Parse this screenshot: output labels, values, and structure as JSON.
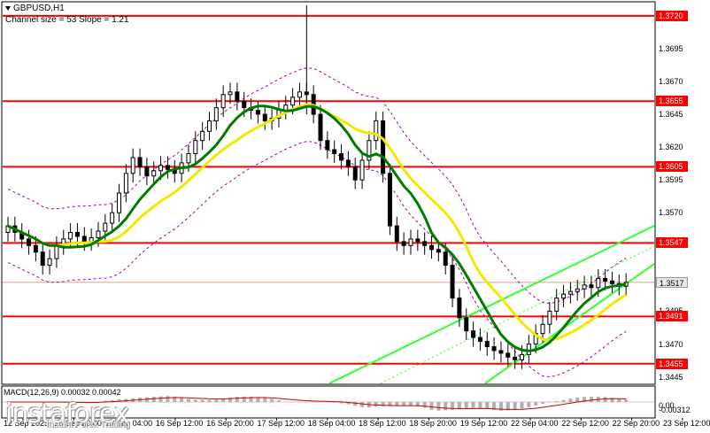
{
  "header": {
    "symbol": "GBPUSD,H1",
    "channel": "Channel size = 53 Slope = 1.21"
  },
  "price_axis": {
    "levels": [
      {
        "value": "1.3720",
        "style": "red"
      },
      {
        "value": "1.3695",
        "style": "plain"
      },
      {
        "value": "1.3670",
        "style": "plain"
      },
      {
        "value": "1.3655",
        "style": "red"
      },
      {
        "value": "1.3645",
        "style": "plain"
      },
      {
        "value": "1.3620",
        "style": "plain"
      },
      {
        "value": "1.3605",
        "style": "red"
      },
      {
        "value": "1.3595",
        "style": "plain"
      },
      {
        "value": "1.3570",
        "style": "plain"
      },
      {
        "value": "1.3547",
        "style": "red"
      },
      {
        "value": "1.3517",
        "style": "cur"
      },
      {
        "value": "1.3495",
        "style": "plain"
      },
      {
        "value": "1.3491",
        "style": "red"
      },
      {
        "value": "1.3470",
        "style": "plain"
      },
      {
        "value": "1.3455",
        "style": "red"
      },
      {
        "value": "1.3445",
        "style": "plain"
      }
    ]
  },
  "time_axis": [
    "12 Sep 2025",
    "15 Sep 20:00",
    "16 Sep 04:00",
    "16 Sep 12:00",
    "16 Sep 20:00",
    "17 Sep 12:00",
    "18 Sep 04:00",
    "18 Sep 12:00",
    "18 Sep 20:00",
    "19 Sep 12:00",
    "22 Sep 04:00",
    "22 Sep 12:00",
    "22 Sep 20:00",
    "23 Sep 12:00"
  ],
  "macd": {
    "title": "MACD(12,26,9) 0.00032 0.00042",
    "levels": [
      "0.00",
      "-0.00312"
    ]
  },
  "branding": {
    "logo": "instaforex",
    "tagline": "Instant Forex Trading"
  },
  "colors": {
    "support_resistance": "#ff0000",
    "ma_fast": "#007a00",
    "ma_slow": "#f5e800",
    "channel": "#33ff33",
    "envelope": "#aa00aa",
    "candle": "#000000"
  },
  "chart_data": {
    "type": "candlestick",
    "symbol": "GBPUSD",
    "timeframe": "H1",
    "horizontal_levels": [
      1.372,
      1.3655,
      1.3605,
      1.3547,
      1.3491,
      1.3455
    ],
    "current_price": 1.3517,
    "ylim": [
      1.344,
      1.373
    ],
    "closes": [
      1.356,
      1.3555,
      1.355,
      1.3545,
      1.354,
      1.353,
      1.3535,
      1.3545,
      1.355,
      1.3555,
      1.3552,
      1.3548,
      1.3551,
      1.3556,
      1.3562,
      1.357,
      1.3585,
      1.36,
      1.3612,
      1.3605,
      1.3598,
      1.3602,
      1.3606,
      1.3603,
      1.36,
      1.3608,
      1.3615,
      1.3625,
      1.3632,
      1.364,
      1.365,
      1.366,
      1.3662,
      1.3655,
      1.365,
      1.3648,
      1.3645,
      1.364,
      1.3642,
      1.3648,
      1.3652,
      1.3658,
      1.3662,
      1.366,
      1.3645,
      1.3625,
      1.3618,
      1.3615,
      1.361,
      1.3605,
      1.3595,
      1.361,
      1.3625,
      1.364,
      1.36,
      1.356,
      1.3548,
      1.3545,
      1.355,
      1.3548,
      1.3545,
      1.3542,
      1.354,
      1.353,
      1.3505,
      1.349,
      1.348,
      1.3475,
      1.3472,
      1.3468,
      1.3465,
      1.3463,
      1.346,
      1.3458,
      1.3462,
      1.347,
      1.3478,
      1.3485,
      1.3495,
      1.3505,
      1.3508,
      1.351,
      1.3512,
      1.3515,
      1.3513,
      1.352,
      1.3518,
      1.3516,
      1.3514,
      1.3517
    ]
  }
}
